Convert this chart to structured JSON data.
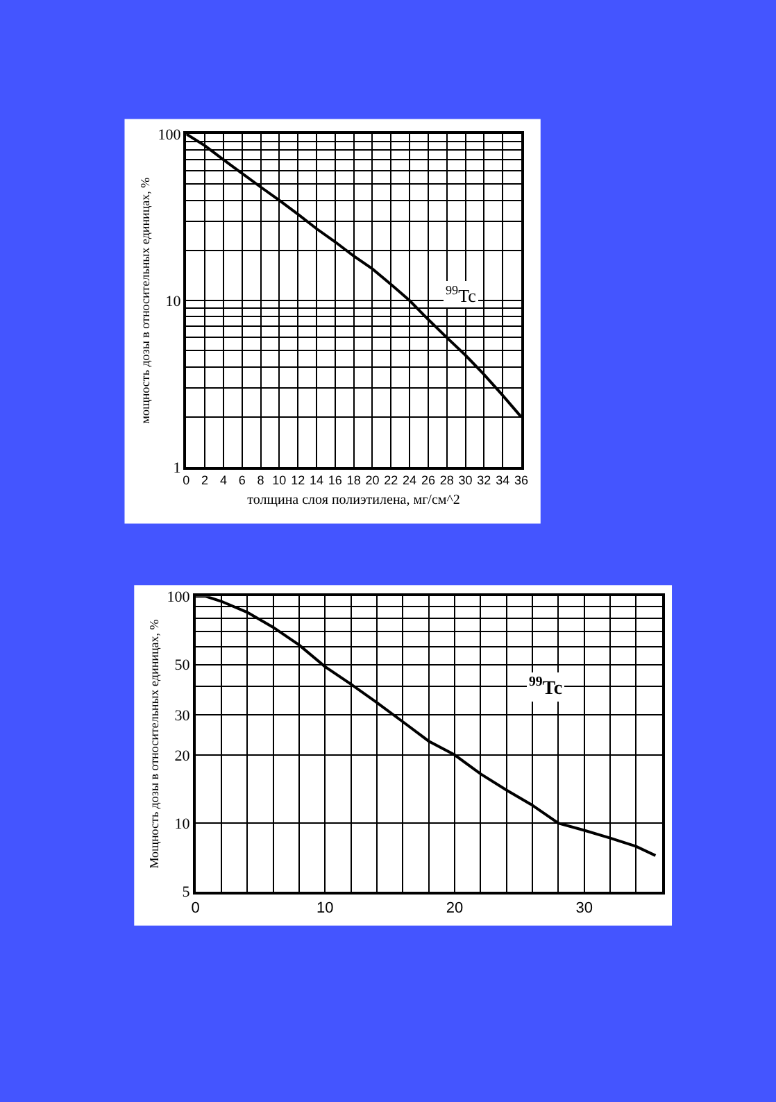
{
  "chart_data": [
    {
      "type": "line",
      "ylabel": "мощность дозы в относительных единицах, %",
      "xlabel": "толщина слоя полиэтилена, мг/см^2",
      "log": "y",
      "grid": true,
      "marker": "none",
      "line_style": "solid",
      "x": [
        0,
        2,
        4,
        6,
        8,
        10,
        12,
        14,
        16,
        18,
        20,
        22,
        24,
        26,
        28,
        30,
        32,
        34,
        36
      ],
      "series": [
        {
          "color": "#000000",
          "values": [
            100,
            85,
            70,
            58,
            48,
            40,
            33,
            27,
            22.5,
            18.5,
            15.5,
            12.5,
            10,
            7.7,
            6,
            4.7,
            3.6,
            2.7,
            2
          ]
        }
      ],
      "xlim": [
        0,
        36
      ],
      "xticks": [
        0,
        2,
        4,
        6,
        8,
        10,
        12,
        14,
        16,
        18,
        20,
        22,
        24,
        26,
        28,
        30,
        32,
        34,
        36
      ],
      "ylim": [
        1,
        100
      ],
      "yticks": [
        1,
        {
          "value": 2,
          "label": null
        },
        {
          "value": 3,
          "label": null
        },
        {
          "value": 4,
          "label": null
        },
        {
          "value": 5,
          "label": null
        },
        {
          "value": 6,
          "label": null
        },
        {
          "value": 7,
          "label": null
        },
        {
          "value": 8,
          "label": null
        },
        {
          "value": 9,
          "label": null
        },
        10,
        {
          "value": 20,
          "label": null
        },
        {
          "value": 30,
          "label": null
        },
        {
          "value": 40,
          "label": null
        },
        {
          "value": 50,
          "label": null
        },
        {
          "value": 60,
          "label": null
        },
        {
          "value": 70,
          "label": null
        },
        {
          "value": 80,
          "label": null
        },
        {
          "value": 90,
          "label": null
        },
        100
      ],
      "annotations": [
        {
          "text": "$^{99}$Tc",
          "x": 29.5,
          "y": 11
        }
      ]
    },
    {
      "type": "line",
      "ylabel": "Мощность дозы в относительных единицах, %",
      "log": "y",
      "grid": true,
      "marker": "none",
      "line_style": "solid",
      "x": [
        0,
        0.8,
        2,
        4,
        6,
        8,
        10,
        12,
        14,
        16,
        18,
        20,
        22,
        24,
        26,
        28,
        30,
        32,
        34,
        35.5
      ],
      "series": [
        {
          "color": "#000000",
          "values": [
            100,
            100,
            95,
            85,
            73,
            61,
            49,
            41,
            34,
            28,
            23,
            20,
            16.5,
            14,
            12,
            10,
            9.3,
            8.6,
            7.9,
            7.2
          ]
        }
      ],
      "xlim": [
        0,
        36
      ],
      "xticks": [
        0,
        {
          "value": 2,
          "label": null
        },
        {
          "value": 4,
          "label": null
        },
        {
          "value": 6,
          "label": null
        },
        {
          "value": 8,
          "label": null
        },
        10,
        {
          "value": 12,
          "label": null
        },
        {
          "value": 14,
          "label": null
        },
        {
          "value": 16,
          "label": null
        },
        {
          "value": 18,
          "label": null
        },
        20,
        {
          "value": 22,
          "label": null
        },
        {
          "value": 24,
          "label": null
        },
        {
          "value": 26,
          "label": null
        },
        {
          "value": 28,
          "label": null
        },
        30,
        {
          "value": 32,
          "label": null
        },
        {
          "value": 34,
          "label": null
        },
        {
          "value": 36,
          "label": null
        }
      ],
      "ylim": [
        5,
        100
      ],
      "yticks": [
        5,
        10,
        20,
        30,
        {
          "value": 40,
          "label": null
        },
        50,
        {
          "value": 60,
          "label": null
        },
        {
          "value": 70,
          "label": null
        },
        {
          "value": 80,
          "label": null
        },
        {
          "value": 90,
          "label": null
        },
        100
      ],
      "annotations": [
        {
          "text": "$^{99}$Tc",
          "x": 27,
          "y": 40
        }
      ]
    }
  ]
}
